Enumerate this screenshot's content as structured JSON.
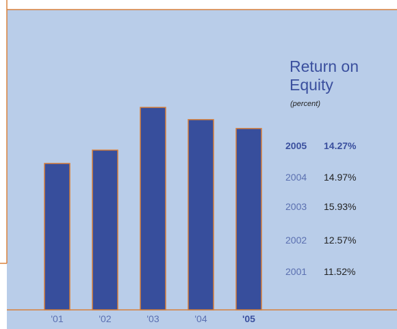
{
  "chart_data": {
    "type": "bar",
    "title": "Return on Equity",
    "subtitle": "(percent)",
    "categories": [
      "'01",
      "'02",
      "'03",
      "'04",
      "'05"
    ],
    "years": [
      "2001",
      "2002",
      "2003",
      "2004",
      "2005"
    ],
    "values": [
      11.52,
      12.57,
      15.93,
      14.97,
      14.27
    ],
    "value_labels": [
      "11.52%",
      "12.57%",
      "15.93%",
      "14.97%",
      "14.27%"
    ],
    "color": "#374e9c",
    "edge_color": "#d9803a",
    "highlight_index": 4
  }
}
